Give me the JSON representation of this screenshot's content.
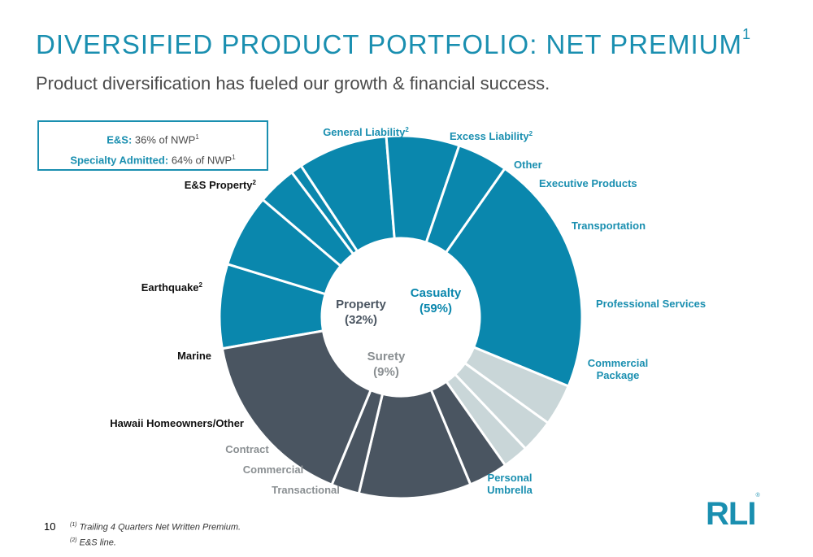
{
  "slide": {
    "title": "DIVERSIFIED PRODUCT PORTFOLIO: NET PREMIUM",
    "title_sup": "1",
    "subtitle": "Product diversification has fueled our growth & financial success.",
    "page_number": "10",
    "footnote_1_marker": "(1)",
    "footnote_1": "Trailing 4 Quarters Net Written Premium.",
    "footnote_2_marker": "(2)",
    "footnote_2": "E&S line.",
    "logo_text": "RLI",
    "logo_mark": "®"
  },
  "summary_box": {
    "es_label": "E&S:",
    "es_value": "36% of NWP",
    "es_sup": "1",
    "sa_label": "Specialty Admitted:",
    "sa_value": "64% of NWP",
    "sa_sup": "1"
  },
  "colors": {
    "casualty": "#0a87ad",
    "property": "#4a5561",
    "surety": "#c9d6d8",
    "title": "#1a8fb0"
  },
  "chart_data": {
    "type": "pie",
    "donut": true,
    "groups": [
      {
        "name": "Property",
        "pct_label": "(32%)",
        "value": 32
      },
      {
        "name": "Casualty",
        "pct_label": "(59%)",
        "value": 59
      },
      {
        "name": "Surety",
        "pct_label": "(9%)",
        "value": 9
      }
    ],
    "slices": [
      {
        "label": "General Liability",
        "sup": "2",
        "group": "casualty",
        "value": 7.5
      },
      {
        "label": "Excess Liability",
        "sup": "2",
        "group": "casualty",
        "value": 6.5
      },
      {
        "label": "Other",
        "sup": "",
        "group": "casualty",
        "value": 3.5
      },
      {
        "label": "Executive Products",
        "sup": "",
        "group": "casualty",
        "value": 1.0
      },
      {
        "label": "Transportation",
        "sup": "",
        "group": "casualty",
        "value": 8.0
      },
      {
        "label": "Professional Services",
        "sup": "",
        "group": "casualty",
        "value": 6.5
      },
      {
        "label": "Commercial Package",
        "sup": "",
        "group": "casualty",
        "value": 4.5
      },
      {
        "label": "Personal Umbrella",
        "sup": "",
        "group": "casualty",
        "value": 21.5
      },
      {
        "label": "Transactional",
        "sup": "",
        "group": "surety",
        "value": 3.7
      },
      {
        "label": "Commercial",
        "sup": "",
        "group": "surety",
        "value": 3.0
      },
      {
        "label": "Contract",
        "sup": "",
        "group": "surety",
        "value": 2.3
      },
      {
        "label": "Hawaii Homeowners/Other",
        "sup": "",
        "group": "property",
        "value": 3.5
      },
      {
        "label": "Marine",
        "sup": "",
        "group": "property",
        "value": 10.0
      },
      {
        "label": "Earthquake",
        "sup": "2",
        "group": "property",
        "value": 2.5
      },
      {
        "label": "E&S Property",
        "sup": "2",
        "group": "property",
        "value": 16.0
      }
    ]
  }
}
